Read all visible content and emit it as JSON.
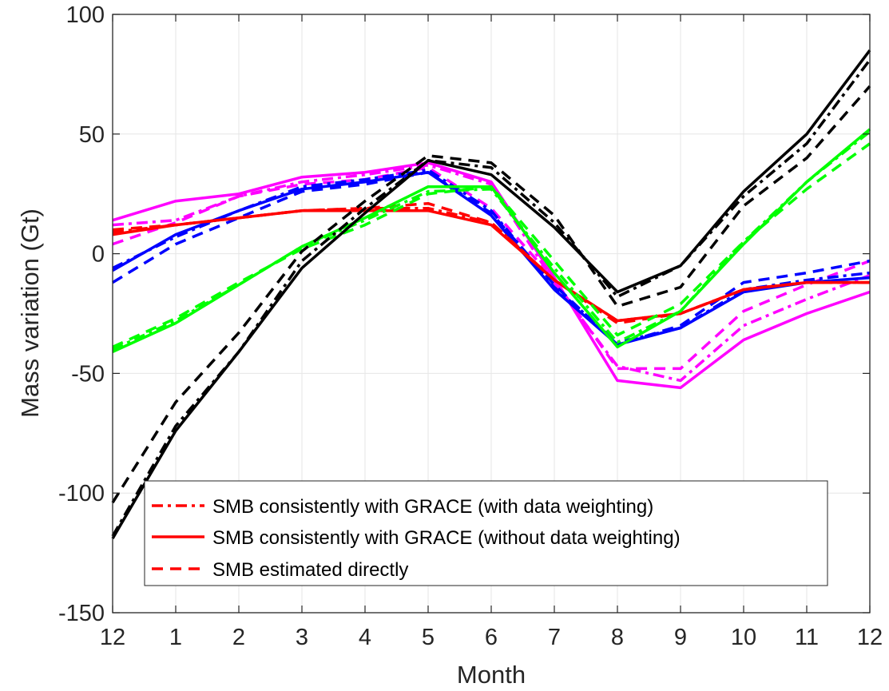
{
  "chart_data": {
    "type": "line",
    "xlabel": "Month",
    "ylabel": "Mass variation (Gt)",
    "x_tick_labels": [
      "12",
      "1",
      "2",
      "3",
      "4",
      "5",
      "6",
      "7",
      "8",
      "9",
      "10",
      "11",
      "12"
    ],
    "y_ticks": [
      -150,
      -100,
      -50,
      0,
      50,
      100
    ],
    "ylim": [
      -150,
      100
    ],
    "grid": true,
    "legend_position": "lower-left",
    "legend": [
      {
        "label": "SMB consistently with GRACE (with data weighting)",
        "style": "dashdot",
        "color": "#ff0000"
      },
      {
        "label": "SMB consistently with GRACE (without data weighting)",
        "style": "solid",
        "color": "#ff0000"
      },
      {
        "label": "SMB estimated directly",
        "style": "dashed",
        "color": "#ff0000"
      }
    ],
    "series": [
      {
        "color": "#ff00ff",
        "style": "solid",
        "values": [
          14,
          22,
          25,
          32,
          34,
          38,
          30,
          -10,
          -53,
          -56,
          -36,
          -25,
          -16
        ]
      },
      {
        "color": "#ff00ff",
        "style": "dashdot",
        "values": [
          12,
          14,
          24,
          30,
          33,
          37,
          29,
          -12,
          -47,
          -53,
          -30,
          -19,
          -9
        ]
      },
      {
        "color": "#ff00ff",
        "style": "dashed",
        "values": [
          4,
          13,
          24,
          29,
          31,
          36,
          19,
          -11,
          -48,
          -48,
          -24,
          -13,
          -3
        ]
      },
      {
        "color": "#0000ff",
        "style": "solid",
        "values": [
          -7,
          8,
          18,
          27,
          30,
          34,
          16,
          -15,
          -38,
          -31,
          -16,
          -12,
          -10
        ]
      },
      {
        "color": "#0000ff",
        "style": "dashdot",
        "values": [
          -6,
          7,
          18,
          28,
          31,
          35,
          18,
          -14,
          -37,
          -31,
          -15,
          -11,
          -8
        ]
      },
      {
        "color": "#0000ff",
        "style": "dashed",
        "values": [
          -12,
          4,
          15,
          26,
          29,
          34,
          17,
          -13,
          -38,
          -30,
          -12,
          -8,
          -3
        ]
      },
      {
        "color": "#ff0000",
        "style": "solid",
        "values": [
          8,
          12,
          15,
          18,
          18,
          18,
          12,
          -11,
          -28,
          -25,
          -15,
          -12,
          -12
        ]
      },
      {
        "color": "#ff0000",
        "style": "dashdot",
        "values": [
          9,
          12,
          15,
          18,
          19,
          19,
          13,
          -11,
          -28,
          -25,
          -15,
          -12,
          -12
        ]
      },
      {
        "color": "#ff0000",
        "style": "dashed",
        "values": [
          10,
          12,
          15,
          18,
          19,
          21,
          13,
          -11,
          -29,
          -25,
          -15,
          -12,
          -12
        ]
      },
      {
        "color": "#00ff00",
        "style": "solid",
        "values": [
          -41,
          -29,
          -13,
          3,
          15,
          28,
          28,
          -8,
          -39,
          -24,
          4,
          30,
          52
        ]
      },
      {
        "color": "#00ff00",
        "style": "dashdot",
        "values": [
          -40,
          -28,
          -13,
          3,
          14,
          26,
          27,
          -6,
          -37,
          -24,
          5,
          30,
          51
        ]
      },
      {
        "color": "#00ff00",
        "style": "dashed",
        "values": [
          -39,
          -27,
          -12,
          2,
          12,
          25,
          28,
          -3,
          -34,
          -21,
          5,
          27,
          46
        ]
      },
      {
        "color": "#000000",
        "style": "solid",
        "values": [
          -119,
          -74,
          -41,
          -6,
          17,
          39,
          33,
          11,
          -16,
          -5,
          26,
          50,
          85
        ]
      },
      {
        "color": "#000000",
        "style": "dashdot",
        "values": [
          -118,
          -72,
          -41,
          -3,
          19,
          39,
          36,
          13,
          -18,
          -5,
          24,
          46,
          81
        ]
      },
      {
        "color": "#000000",
        "style": "dashed",
        "values": [
          -104,
          -62,
          -33,
          1,
          22,
          41,
          38,
          16,
          -22,
          -14,
          20,
          40,
          70
        ]
      }
    ]
  }
}
